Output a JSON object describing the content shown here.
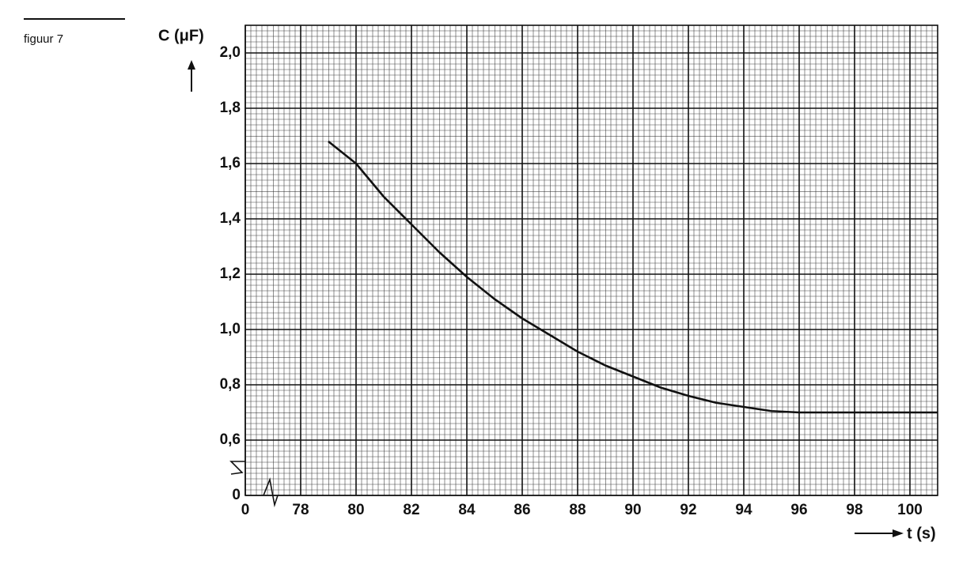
{
  "figure_label": "figuur 7",
  "chart_data": {
    "type": "line",
    "y_label": "C (μF)",
    "x_label": "t (s)",
    "xlim": [
      0,
      101
    ],
    "ylim": [
      0,
      2.1
    ],
    "x_break": true,
    "y_break": true,
    "grid": true,
    "xticks": [
      0,
      78,
      80,
      82,
      84,
      86,
      88,
      90,
      92,
      94,
      96,
      98,
      100
    ],
    "yticks": [
      0,
      {
        "value": 0.6,
        "label": "0,6"
      },
      {
        "value": 0.8,
        "label": "0,8"
      },
      {
        "value": 1.0,
        "label": "1,0"
      },
      {
        "value": 1.2,
        "label": "1,2"
      },
      {
        "value": 1.4,
        "label": "1,4"
      },
      {
        "value": 1.6,
        "label": "1,6"
      },
      {
        "value": 1.8,
        "label": "1,8"
      },
      {
        "value": 2.0,
        "label": "2,0"
      }
    ],
    "series": [
      {
        "color": "#111111",
        "x": [
          79,
          80,
          81,
          82,
          83,
          84,
          85,
          86,
          87,
          88,
          89,
          90,
          91,
          92,
          93,
          94,
          95,
          96,
          98,
          100,
          101
        ],
        "values": [
          1.68,
          1.6,
          1.48,
          1.38,
          1.28,
          1.19,
          1.11,
          1.04,
          0.98,
          0.92,
          0.87,
          0.83,
          0.79,
          0.76,
          0.735,
          0.72,
          0.705,
          0.7,
          0.7,
          0.7,
          0.7
        ]
      }
    ]
  }
}
